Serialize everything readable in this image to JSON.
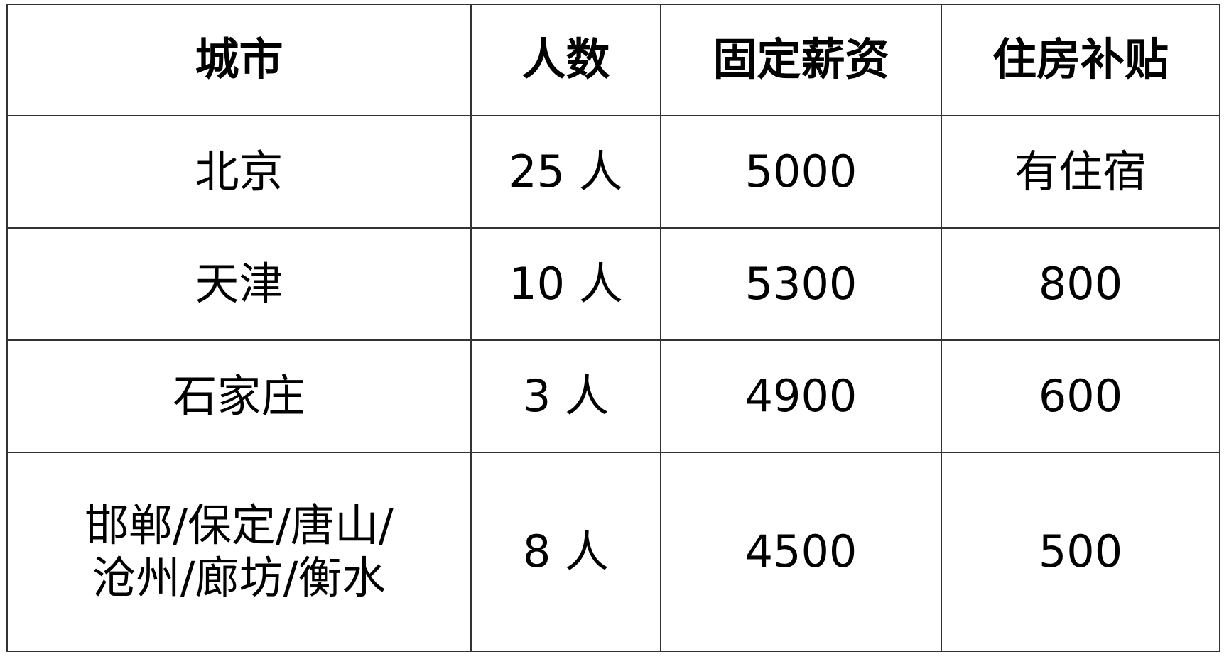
{
  "table": {
    "headers": [
      "城市",
      "人数",
      "固定薪资",
      "住房补贴"
    ],
    "rows": [
      [
        "北京",
        "25 人",
        "5000",
        "有住宿"
      ],
      [
        "天津",
        "10 人",
        "5300",
        "800"
      ],
      [
        "石家庄",
        "3 人",
        "4900",
        "600"
      ],
      [
        "邯郸/保定/唐山/\n沧州/廊坊/衡水",
        "8 人",
        "4500",
        "500"
      ]
    ]
  }
}
